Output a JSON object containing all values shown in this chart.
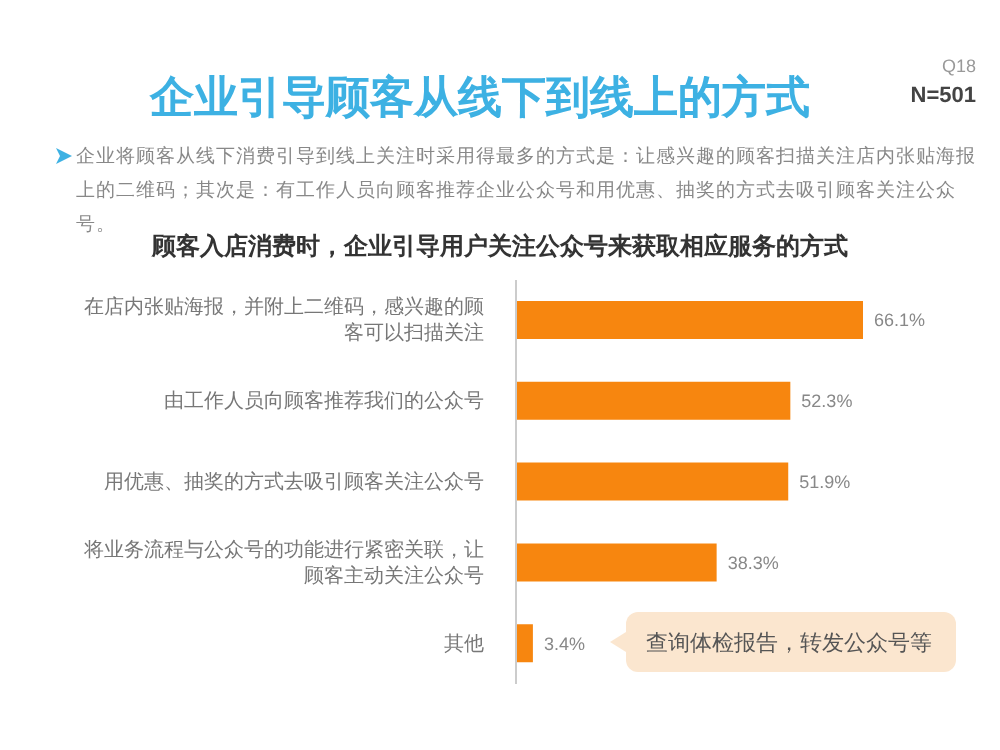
{
  "chart_data": {
    "type": "bar",
    "orientation": "horizontal",
    "title": "企业引导顾客从线下到线上的方式",
    "subtitle": "顾客入店消费时，企业引导用户关注公众号来获取相应服务的方式",
    "categories": [
      "在店内张贴海报，并附上二维码，感兴趣的顾客可以扫描关注",
      "由工作人员向顾客推荐我们的公众号",
      "用优惠、抽奖的方式去吸引顾客关注公众号",
      "将业务流程与公众号的功能进行紧密关联，让顾客主动关注公众号",
      "其他"
    ],
    "values": [
      66.1,
      52.3,
      51.9,
      38.3,
      3.4
    ],
    "value_labels": [
      "66.1%",
      "52.3%",
      "51.9%",
      "38.3%",
      "3.4%"
    ],
    "color": "#f7860f",
    "tick_labels": "y",
    "annotations": [
      "Q18",
      "N=501",
      "企业将顾客从线下消费引导到线上关注时采用得最多的方式是：让感兴趣的顾客扫描关注店内张贴海报上的二维码；其次是：有工作人员向顾客推荐企业公众号和用优惠、抽奖的方式去吸引顾客关注公众号。",
      "查询体检报告，转发公众号等"
    ]
  }
}
